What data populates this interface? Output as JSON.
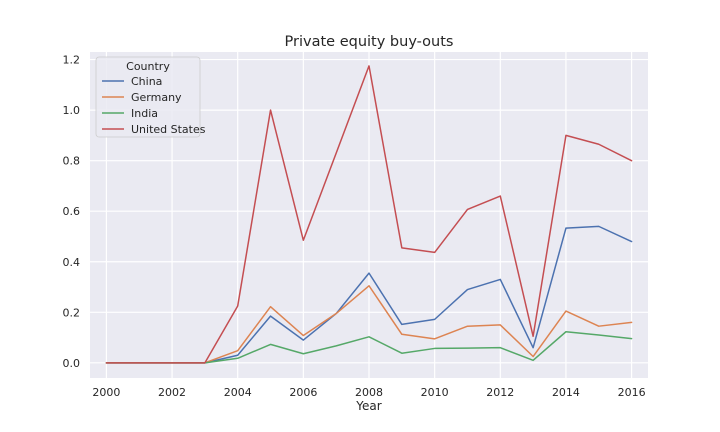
{
  "chart_data": {
    "type": "line",
    "title": "Private equity buy-outs",
    "xlabel": "Year",
    "ylabel": "",
    "x": [
      2000,
      2001,
      2002,
      2003,
      2004,
      2005,
      2006,
      2007,
      2008,
      2009,
      2010,
      2011,
      2012,
      2013,
      2014,
      2015,
      2016
    ],
    "xlim": [
      1999.5,
      2016.5
    ],
    "ylim": [
      -0.06,
      1.23
    ],
    "xticks": [
      2000,
      2002,
      2004,
      2006,
      2008,
      2010,
      2012,
      2014,
      2016
    ],
    "yticks": [
      0.0,
      0.2,
      0.4,
      0.6,
      0.8,
      1.0,
      1.2
    ],
    "grid": true,
    "legend": {
      "title": "Country",
      "placement": "top-left"
    },
    "series": [
      {
        "name": "China",
        "color": "#4c72b0",
        "values": [
          0,
          0,
          0,
          0,
          0.03,
          0.185,
          0.09,
          0.195,
          0.355,
          0.152,
          0.172,
          0.29,
          0.33,
          0.06,
          0.533,
          0.54,
          0.48
        ]
      },
      {
        "name": "Germany",
        "color": "#dd8452",
        "values": [
          0,
          0,
          0,
          0,
          0.048,
          0.222,
          0.108,
          0.195,
          0.305,
          0.113,
          0.095,
          0.145,
          0.15,
          0.025,
          0.205,
          0.145,
          0.16
        ]
      },
      {
        "name": "India",
        "color": "#55a868",
        "values": [
          0,
          0,
          0,
          0,
          0.018,
          0.073,
          0.036,
          0.067,
          0.103,
          0.038,
          0.057,
          0.058,
          0.06,
          0.01,
          0.123,
          0.11,
          0.096
        ]
      },
      {
        "name": "United States",
        "color": "#c44e52",
        "values": [
          0,
          0,
          0,
          0,
          0.225,
          1.0,
          0.485,
          0.83,
          1.175,
          0.455,
          0.437,
          0.607,
          0.66,
          0.105,
          0.9,
          0.865,
          0.8
        ]
      }
    ]
  }
}
